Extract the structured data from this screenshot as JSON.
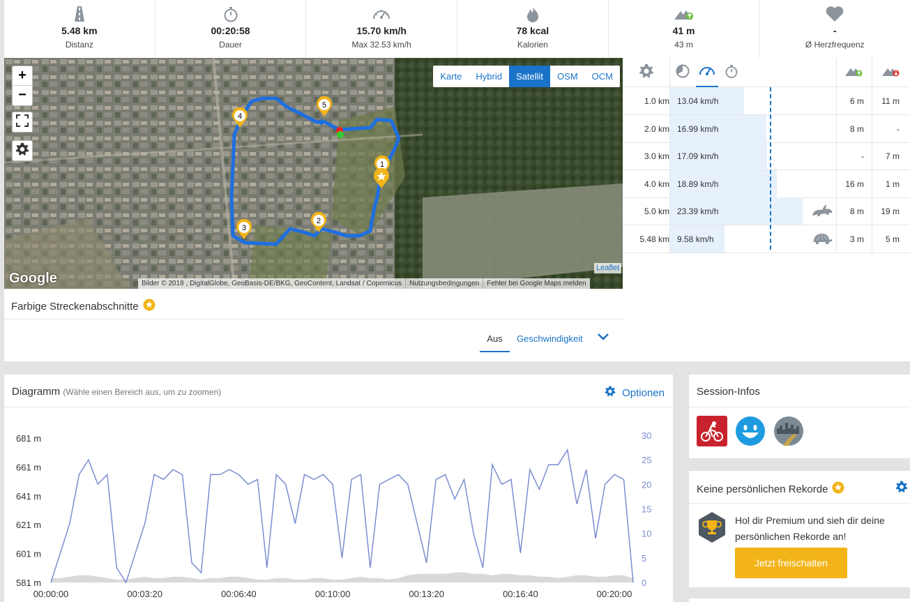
{
  "stats": [
    {
      "icon": "road-icon",
      "value": "5.48 km",
      "label": "Distanz"
    },
    {
      "icon": "stopwatch-icon",
      "value": "00:20:58",
      "label": "Dauer"
    },
    {
      "icon": "speedometer-icon",
      "value": "15.70 km/h",
      "label": "Max 32.53 km/h"
    },
    {
      "icon": "flame-icon",
      "value": "78 kcal",
      "label": "Kalorien"
    },
    {
      "icon": "elevation-up-icon",
      "value": "41 m",
      "label": "43 m"
    },
    {
      "icon": "heart-icon",
      "value": "-",
      "label": "Ø Herzfrequenz"
    }
  ],
  "map": {
    "layers": [
      "Karte",
      "Hybrid",
      "Satellit",
      "OSM",
      "OCM"
    ],
    "active_layer": "Satellit",
    "zoom_in": "+",
    "zoom_out": "−",
    "google": "Google",
    "attribution": [
      "Bilder © 2018 , DigitalGlobe, GeoBasis-DE/BKG, GeoContent, Landsat / Copernicus",
      "Nutzungsbedingungen",
      "Fehler bei Google Maps melden"
    ],
    "leaflet": "Leaflet",
    "markers": [
      "1",
      "2",
      "3",
      "4",
      "5"
    ]
  },
  "colored_sections": {
    "title": "Farbige Streckenabschnitte",
    "tab_off": "Aus",
    "tab_speed": "Geschwindigkeit"
  },
  "splits": {
    "rows": [
      {
        "km": "1.0 km",
        "speed": "13.04 km/h",
        "speed_value": 13.04,
        "up": "6 m",
        "down": "11 m",
        "animal": ""
      },
      {
        "km": "2.0 km",
        "speed": "16.99 km/h",
        "speed_value": 16.99,
        "up": "8 m",
        "down": "-",
        "animal": ""
      },
      {
        "km": "3.0 km",
        "speed": "17.09 km/h",
        "speed_value": 17.09,
        "up": "-",
        "down": "7 m",
        "animal": ""
      },
      {
        "km": "4.0 km",
        "speed": "18.89 km/h",
        "speed_value": 18.89,
        "up": "16 m",
        "down": "1 m",
        "animal": ""
      },
      {
        "km": "5.0 km",
        "speed": "23.39 km/h",
        "speed_value": 23.39,
        "up": "8 m",
        "down": "19 m",
        "animal": "rabbit-icon"
      },
      {
        "km": "5.48 km",
        "speed": "9.58 km/h",
        "speed_value": 9.58,
        "up": "3 m",
        "down": "5 m",
        "animal": "turtle-icon"
      }
    ]
  },
  "diagram": {
    "title": "Diagramm",
    "hint": "(Wähle einen Bereich aus, um zu zoomen)",
    "options": "Optionen"
  },
  "chart_data": {
    "type": "line",
    "x_ticks": [
      "00:00:00",
      "00:03:20",
      "00:06:40",
      "00:10:00",
      "00:13:20",
      "00:16:40",
      "00:20:00"
    ],
    "y_left_ticks": [
      "681 m",
      "661 m",
      "641 m",
      "621 m",
      "601 m",
      "581 m"
    ],
    "y_right_ticks": [
      "30",
      "25",
      "20",
      "15",
      "10",
      "5",
      "0"
    ],
    "ylim_left": [
      581,
      681
    ],
    "ylim_right": [
      0,
      30
    ],
    "x_seconds": [
      0,
      20,
      40,
      60,
      80,
      100,
      120,
      140,
      160,
      180,
      200,
      220,
      240,
      260,
      280,
      300,
      320,
      340,
      360,
      380,
      400,
      420,
      440,
      460,
      480,
      500,
      520,
      540,
      560,
      580,
      600,
      620,
      640,
      660,
      680,
      700,
      720,
      740,
      760,
      780,
      800,
      820,
      840,
      860,
      880,
      900,
      920,
      940,
      960,
      980,
      1000,
      1020,
      1040,
      1060,
      1080,
      1100,
      1120,
      1140,
      1160,
      1180,
      1200,
      1220,
      1240
    ],
    "series": [
      {
        "axis": "right",
        "color": "#7b8dd0",
        "values": [
          0,
          6,
          12,
          22,
          25,
          20,
          22,
          3,
          0,
          6,
          12,
          22,
          21,
          23,
          22,
          4,
          2,
          22,
          22,
          23,
          22,
          20,
          21,
          3,
          22,
          20,
          12,
          22,
          21,
          22,
          20,
          5,
          21,
          22,
          3,
          20,
          21,
          22,
          20,
          12,
          4,
          21,
          22,
          17,
          21,
          10,
          3,
          24,
          20,
          21,
          6,
          23,
          19,
          24,
          24,
          27,
          16,
          23,
          9,
          20,
          22,
          21,
          0
        ]
      },
      {
        "axis": "left",
        "color": "#d9d9d9",
        "values": [
          584,
          584,
          585,
          586,
          586,
          585,
          584,
          583,
          583,
          584,
          585,
          584,
          584,
          585,
          585,
          584,
          583,
          584,
          584,
          585,
          585,
          584,
          583,
          583,
          584,
          584,
          583,
          583,
          584,
          584,
          583,
          583,
          584,
          585,
          584,
          584,
          583,
          584,
          586,
          587,
          587,
          587,
          587,
          588,
          588,
          587,
          587,
          586,
          587,
          587,
          586,
          586,
          585,
          585,
          584,
          585,
          586,
          586,
          585,
          585,
          586,
          586,
          584
        ]
      }
    ]
  },
  "session": {
    "title": "Session-Infos",
    "icons": [
      "cycling-icon",
      "smiley-icon",
      "city-road-icon"
    ]
  },
  "records": {
    "title": "Keine persönlichen Rekorde",
    "message": "Hol dir Premium und sieh dir deine persönlichen Rekorde an!",
    "button": "Jetzt freischalten"
  },
  "colors": {
    "accent": "#1a73c8",
    "premium": "#f2b418",
    "route": "#1e6fe0",
    "chart_line": "#7b8dd0"
  }
}
